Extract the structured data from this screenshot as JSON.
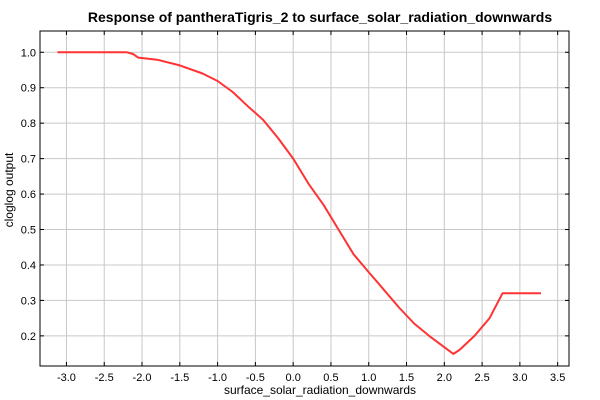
{
  "chart_data": {
    "type": "line",
    "title": "Response of pantheraTigris_2 to surface_solar_radiation_downwards",
    "xlabel": "surface_solar_radiation_downwards",
    "ylabel": "cloglog output",
    "xlim": [
      -3.35,
      3.65
    ],
    "ylim": [
      0.115,
      1.06
    ],
    "xticks": [
      "-3.0",
      "-2.5",
      "-2.0",
      "-1.5",
      "-1.0",
      "-0.5",
      "0.0",
      "0.5",
      "1.0",
      "1.5",
      "2.0",
      "2.5",
      "3.0",
      "3.5"
    ],
    "yticks": [
      "0.2",
      "0.3",
      "0.4",
      "0.5",
      "0.6",
      "0.7",
      "0.8",
      "0.9",
      "1.0"
    ],
    "grid": true,
    "series": [
      {
        "color": "#ff3333",
        "x": [
          -3.12,
          -2.2,
          -2.12,
          -2.05,
          -1.8,
          -1.5,
          -1.2,
          -1.0,
          -0.8,
          -0.6,
          -0.4,
          -0.2,
          0.0,
          0.2,
          0.4,
          0.6,
          0.8,
          1.0,
          1.2,
          1.4,
          1.6,
          1.8,
          2.0,
          2.12,
          2.2,
          2.4,
          2.6,
          2.77,
          3.28
        ],
        "y": [
          1.0,
          1.0,
          0.995,
          0.985,
          0.979,
          0.963,
          0.94,
          0.919,
          0.888,
          0.848,
          0.81,
          0.758,
          0.7,
          0.63,
          0.57,
          0.5,
          0.43,
          0.38,
          0.33,
          0.28,
          0.235,
          0.2,
          0.168,
          0.149,
          0.16,
          0.2,
          0.25,
          0.32,
          0.32
        ]
      }
    ]
  }
}
